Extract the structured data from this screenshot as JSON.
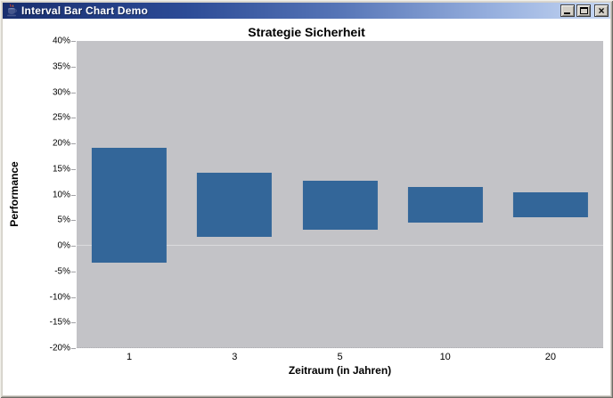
{
  "window": {
    "title": "Interval Bar Chart Demo",
    "close_glyph": "×",
    "icons": {
      "app": "java-cup-icon",
      "minimize": "minimize-icon",
      "maximize": "maximize-icon",
      "close": "close-icon"
    }
  },
  "chart_data": {
    "type": "bar",
    "subtype": "interval-bar",
    "title": "Strategie Sicherheit",
    "xlabel": "Zeitraum (in Jahren)",
    "ylabel": "Performance",
    "categories": [
      "1",
      "3",
      "5",
      "10",
      "20"
    ],
    "series": [
      {
        "name": "Performance",
        "intervals": [
          {
            "category": "1",
            "low": -3.4,
            "high": 19.1
          },
          {
            "category": "3",
            "low": 1.7,
            "high": 14.2
          },
          {
            "category": "5",
            "low": 3.0,
            "high": 12.7
          },
          {
            "category": "10",
            "low": 4.5,
            "high": 11.4
          },
          {
            "category": "20",
            "low": 5.5,
            "high": 10.3
          }
        ]
      }
    ],
    "ylim": [
      -20,
      40
    ],
    "ytick_step": 5,
    "ytick_labels": [
      "40%",
      "35%",
      "30%",
      "25%",
      "20%",
      "15%",
      "10%",
      "5%",
      "0%",
      "-5%",
      "-10%",
      "-15%",
      "-20%"
    ],
    "grid": false,
    "legend": "none",
    "colors": {
      "bar": "#336699",
      "plot_background": "#c3c3c7",
      "chart_background": "#ffffff",
      "zero_line": "rgba(255,255,255,0.4)"
    }
  }
}
